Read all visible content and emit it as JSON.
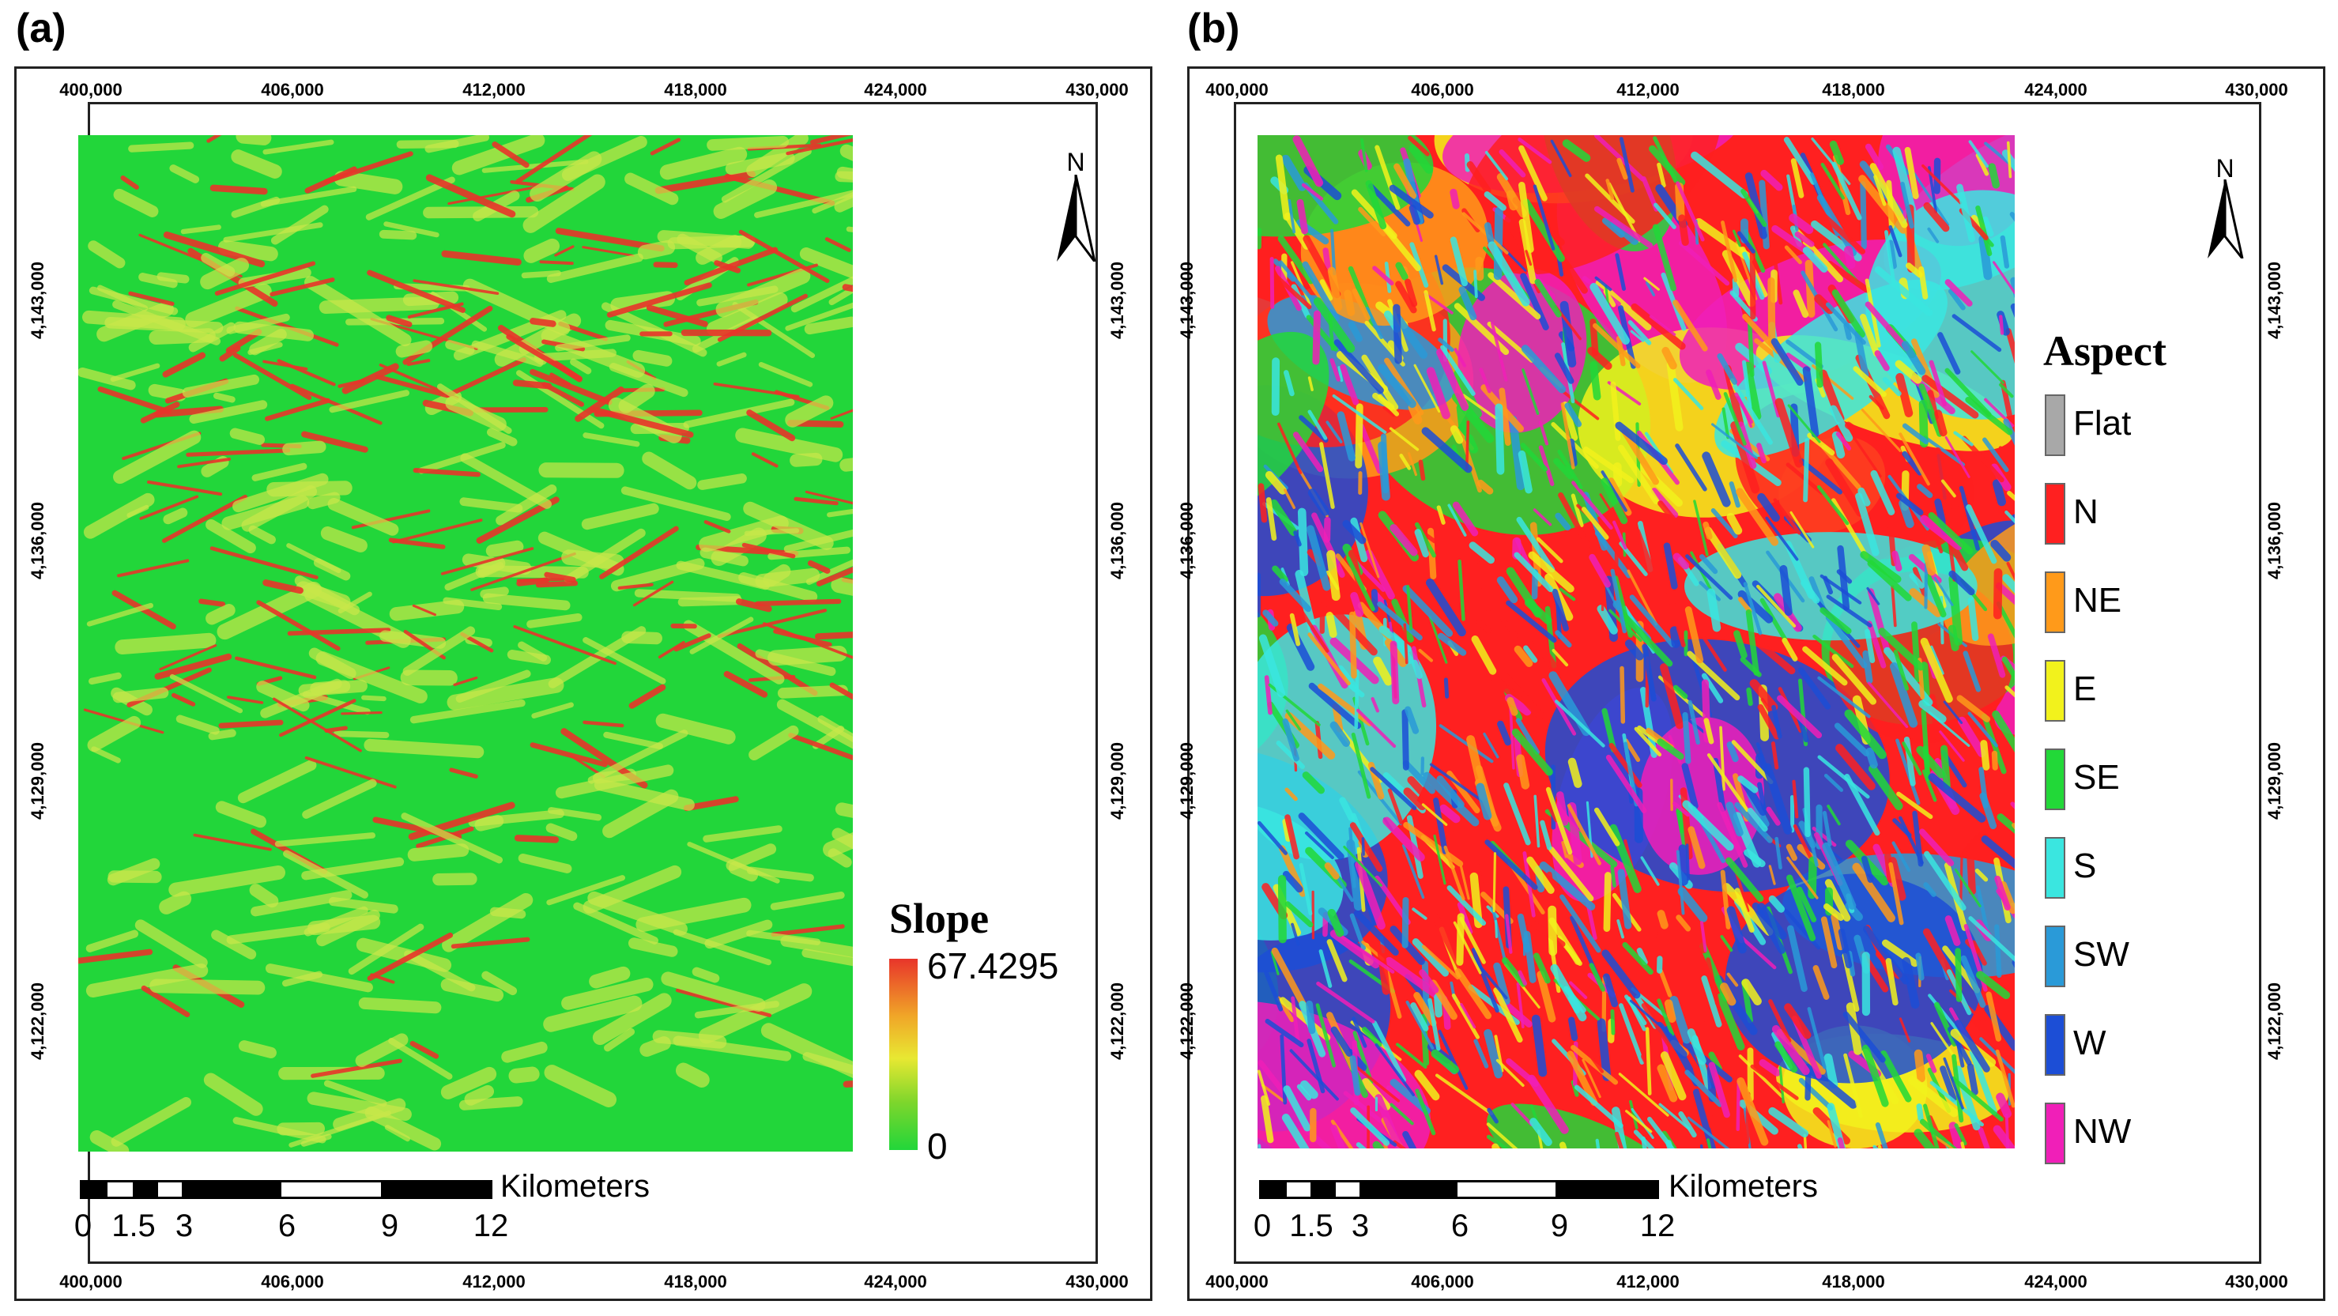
{
  "panels": [
    {
      "label": "(a)",
      "x_ticks": [
        "400,000",
        "406,000",
        "412,000",
        "418,000",
        "424,000",
        "430,000"
      ],
      "y_ticks": [
        "4,143,000",
        "4,136,000",
        "4,129,000",
        "4,122,000"
      ],
      "legend_title": "Slope",
      "ramp_max": "67.4295",
      "ramp_min": "0",
      "north": "N",
      "scale_unit": "Kilometers",
      "scale_numbers": [
        "0",
        "1.5",
        "3",
        "6",
        "9",
        "12"
      ]
    },
    {
      "label": "(b)",
      "x_ticks": [
        "400,000",
        "406,000",
        "412,000",
        "418,000",
        "424,000",
        "430,000"
      ],
      "y_ticks": [
        "4,143,000",
        "4,136,000",
        "4,129,000",
        "4,122,000"
      ],
      "legend_title": "Aspect",
      "north": "N",
      "scale_unit": "Kilometers",
      "scale_numbers": [
        "0",
        "1.5",
        "3",
        "6",
        "9",
        "12"
      ],
      "aspect_classes": [
        {
          "label": "Flat",
          "color": "#a8a8a8"
        },
        {
          "label": "N",
          "color": "#ff2020"
        },
        {
          "label": "NE",
          "color": "#ff9a1a"
        },
        {
          "label": "E",
          "color": "#f2f21c"
        },
        {
          "label": "SE",
          "color": "#22d838"
        },
        {
          "label": "S",
          "color": "#3ae6e0"
        },
        {
          "label": "SW",
          "color": "#2a9ad8"
        },
        {
          "label": "W",
          "color": "#1c4ed6"
        },
        {
          "label": "NW",
          "color": "#f01fb8"
        }
      ]
    }
  ],
  "slope_colors": {
    "low": "#22d63a",
    "mid": "#c9e84a",
    "high": "#e8352a"
  }
}
